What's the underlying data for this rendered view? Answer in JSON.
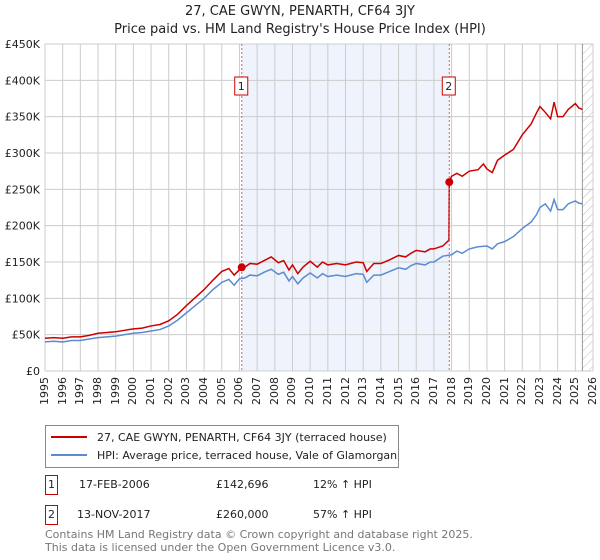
{
  "chart_data": {
    "type": "line",
    "title": "27, CAE GWYN, PENARTH, CF64 3JY",
    "subtitle": "Price paid vs. HM Land Registry's House Price Index (HPI)",
    "xlim": [
      1995,
      2026
    ],
    "ylim": [
      0,
      450000
    ],
    "grid": true,
    "x_ticks": [
      "1995",
      "1996",
      "1997",
      "1998",
      "1999",
      "2000",
      "2001",
      "2002",
      "2003",
      "2004",
      "2005",
      "2006",
      "2007",
      "2008",
      "2009",
      "2010",
      "2011",
      "2012",
      "2013",
      "2014",
      "2015",
      "2016",
      "2017",
      "2018",
      "2019",
      "2020",
      "2021",
      "2022",
      "2023",
      "2024",
      "2025",
      "2026"
    ],
    "y_ticks": [
      {
        "value": 0,
        "label": "£0"
      },
      {
        "value": 50000,
        "label": "£50K"
      },
      {
        "value": 100000,
        "label": "£100K"
      },
      {
        "value": 150000,
        "label": "£150K"
      },
      {
        "value": 200000,
        "label": "£200K"
      },
      {
        "value": 250000,
        "label": "£250K"
      },
      {
        "value": 300000,
        "label": "£300K"
      },
      {
        "value": 350000,
        "label": "£350K"
      },
      {
        "value": 400000,
        "label": "£400K"
      },
      {
        "value": 450000,
        "label": "£450K"
      }
    ],
    "shaded_range": [
      2006.13,
      2017.87
    ],
    "hatched_from": 2025.4,
    "series": [
      {
        "name": "27, CAE GWYN, PENARTH, CF64 3JY (terraced house)",
        "color": "#cc0000",
        "points": [
          [
            1995,
            45
          ],
          [
            1995.5,
            46
          ],
          [
            1996,
            45
          ],
          [
            1996.5,
            47
          ],
          [
            1997,
            47
          ],
          [
            1997.5,
            49
          ],
          [
            1998,
            52
          ],
          [
            1998.5,
            53
          ],
          [
            1999,
            54
          ],
          [
            1999.5,
            56
          ],
          [
            2000,
            58
          ],
          [
            2000.5,
            59
          ],
          [
            2001,
            62
          ],
          [
            2001.5,
            64
          ],
          [
            2002,
            69
          ],
          [
            2002.5,
            78
          ],
          [
            2003,
            90
          ],
          [
            2003.5,
            101
          ],
          [
            2004,
            112
          ],
          [
            2004.5,
            125
          ],
          [
            2005,
            137
          ],
          [
            2005.4,
            141
          ],
          [
            2005.7,
            132
          ],
          [
            2006.13,
            142.7
          ],
          [
            2006.3,
            143
          ],
          [
            2006.6,
            148
          ],
          [
            2007,
            147
          ],
          [
            2007.4,
            152
          ],
          [
            2007.8,
            157
          ],
          [
            2008.2,
            149
          ],
          [
            2008.5,
            152
          ],
          [
            2008.8,
            139
          ],
          [
            2009,
            146
          ],
          [
            2009.3,
            134
          ],
          [
            2009.6,
            143
          ],
          [
            2010,
            151
          ],
          [
            2010.4,
            143
          ],
          [
            2010.7,
            150
          ],
          [
            2011,
            146
          ],
          [
            2011.5,
            148
          ],
          [
            2012,
            146
          ],
          [
            2012.6,
            150
          ],
          [
            2013,
            149
          ],
          [
            2013.2,
            137
          ],
          [
            2013.6,
            148
          ],
          [
            2014,
            148
          ],
          [
            2014.5,
            153
          ],
          [
            2015,
            159
          ],
          [
            2015.4,
            157
          ],
          [
            2015.7,
            162
          ],
          [
            2016,
            166
          ],
          [
            2016.5,
            164
          ],
          [
            2016.8,
            168
          ],
          [
            2017,
            168
          ],
          [
            2017.5,
            172
          ],
          [
            2017.85,
            180
          ],
          [
            2017.87,
            260
          ],
          [
            2018,
            268
          ],
          [
            2018.3,
            272
          ],
          [
            2018.6,
            268
          ],
          [
            2019,
            275
          ],
          [
            2019.5,
            277
          ],
          [
            2019.8,
            285
          ],
          [
            2020,
            278
          ],
          [
            2020.3,
            273
          ],
          [
            2020.6,
            290
          ],
          [
            2021,
            297
          ],
          [
            2021.5,
            305
          ],
          [
            2022,
            325
          ],
          [
            2022.5,
            340
          ],
          [
            2022.8,
            355
          ],
          [
            2023,
            364
          ],
          [
            2023.3,
            356
          ],
          [
            2023.6,
            347
          ],
          [
            2023.8,
            370
          ],
          [
            2024,
            350
          ],
          [
            2024.3,
            350
          ],
          [
            2024.6,
            360
          ],
          [
            2025,
            368
          ],
          [
            2025.2,
            362
          ],
          [
            2025.4,
            360
          ]
        ]
      },
      {
        "name": "HPI: Average price, terraced house, Vale of Glamorgan",
        "color": "#5b8bd0",
        "points": [
          [
            1995,
            40
          ],
          [
            1995.5,
            41
          ],
          [
            1996,
            40
          ],
          [
            1996.5,
            42
          ],
          [
            1997,
            42
          ],
          [
            1997.5,
            44
          ],
          [
            1998,
            46
          ],
          [
            1998.5,
            47
          ],
          [
            1999,
            48
          ],
          [
            1999.5,
            50
          ],
          [
            2000,
            52
          ],
          [
            2000.5,
            53
          ],
          [
            2001,
            55
          ],
          [
            2001.5,
            57
          ],
          [
            2002,
            62
          ],
          [
            2002.5,
            70
          ],
          [
            2003,
            80
          ],
          [
            2003.5,
            90
          ],
          [
            2004,
            100
          ],
          [
            2004.5,
            112
          ],
          [
            2005,
            122
          ],
          [
            2005.4,
            126
          ],
          [
            2005.7,
            118
          ],
          [
            2006,
            127
          ],
          [
            2006.3,
            128
          ],
          [
            2006.6,
            132
          ],
          [
            2007,
            131
          ],
          [
            2007.4,
            136
          ],
          [
            2007.8,
            140
          ],
          [
            2008.2,
            133
          ],
          [
            2008.5,
            136
          ],
          [
            2008.8,
            124
          ],
          [
            2009,
            130
          ],
          [
            2009.3,
            120
          ],
          [
            2009.6,
            128
          ],
          [
            2010,
            135
          ],
          [
            2010.4,
            128
          ],
          [
            2010.7,
            134
          ],
          [
            2011,
            130
          ],
          [
            2011.5,
            132
          ],
          [
            2012,
            130
          ],
          [
            2012.6,
            134
          ],
          [
            2013,
            133
          ],
          [
            2013.2,
            122
          ],
          [
            2013.6,
            132
          ],
          [
            2014,
            132
          ],
          [
            2014.5,
            137
          ],
          [
            2015,
            142
          ],
          [
            2015.4,
            140
          ],
          [
            2015.7,
            145
          ],
          [
            2016,
            148
          ],
          [
            2016.5,
            146
          ],
          [
            2016.8,
            150
          ],
          [
            2017,
            150
          ],
          [
            2017.5,
            158
          ],
          [
            2018,
            160
          ],
          [
            2018.3,
            165
          ],
          [
            2018.6,
            162
          ],
          [
            2019,
            168
          ],
          [
            2019.5,
            171
          ],
          [
            2020,
            172
          ],
          [
            2020.3,
            168
          ],
          [
            2020.6,
            175
          ],
          [
            2021,
            178
          ],
          [
            2021.5,
            185
          ],
          [
            2022,
            196
          ],
          [
            2022.5,
            205
          ],
          [
            2022.8,
            215
          ],
          [
            2023,
            225
          ],
          [
            2023.3,
            230
          ],
          [
            2023.6,
            220
          ],
          [
            2023.8,
            236
          ],
          [
            2024,
            222
          ],
          [
            2024.3,
            222
          ],
          [
            2024.6,
            230
          ],
          [
            2025,
            234
          ],
          [
            2025.2,
            231
          ],
          [
            2025.4,
            230
          ]
        ]
      }
    ],
    "value_unit": "thousands GBP",
    "sales": [
      {
        "label": "1",
        "x": 2006.13,
        "value": 142.696,
        "date": "17-FEB-2006",
        "price": "£142,696",
        "hpi": "12% ↑ HPI"
      },
      {
        "label": "2",
        "x": 2017.87,
        "value": 260,
        "date": "13-NOV-2017",
        "price": "£260,000",
        "hpi": "57% ↑ HPI"
      }
    ]
  },
  "footer": {
    "line1": "Contains HM Land Registry data © Crown copyright and database right 2025.",
    "line2": "This data is licensed under the Open Government Licence v3.0."
  }
}
